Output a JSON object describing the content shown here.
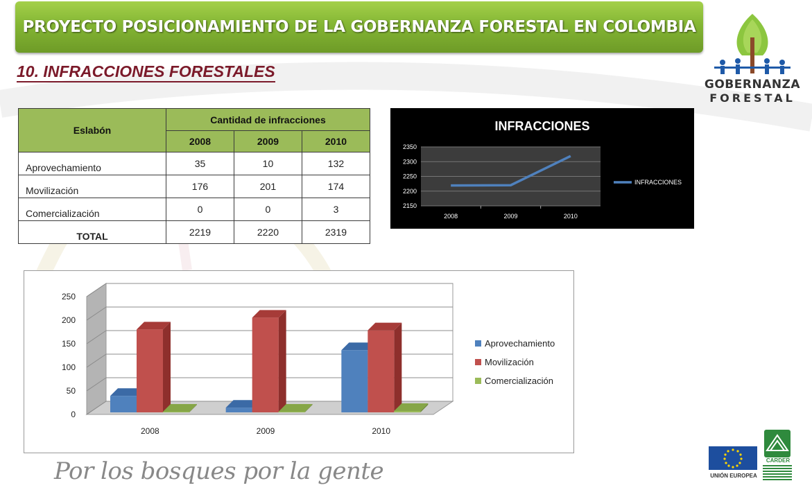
{
  "header": {
    "title": "PROYECTO POSICIONAMIENTO DE LA GOBERNANZA FORESTAL EN COLOMBIA"
  },
  "section": {
    "title": "10. INFRACCIONES FORESTALES"
  },
  "logo": {
    "line1": "GOBERNANZA",
    "line2": "FORESTAL"
  },
  "table": {
    "col_eslabon": "Eslabón",
    "col_cantidad": "Cantidad de infracciones",
    "years": [
      "2008",
      "2009",
      "2010"
    ],
    "rows": [
      {
        "label": "Aprovechamiento",
        "values": [
          "35",
          "10",
          "132"
        ]
      },
      {
        "label": "Movilización",
        "values": [
          "176",
          "201",
          "174"
        ]
      },
      {
        "label": "Comercialización",
        "values": [
          "0",
          "0",
          "3"
        ]
      },
      {
        "label": "TOTAL",
        "values": [
          "2219",
          "2220",
          "2319"
        ]
      }
    ]
  },
  "chart_data": [
    {
      "type": "line",
      "title": "INFRACCIONES",
      "x": [
        "2008",
        "2009",
        "2010"
      ],
      "series": [
        {
          "name": "INFRACCIONES",
          "values": [
            2219,
            2220,
            2319
          ],
          "color": "#4f81bd"
        }
      ],
      "yticks": [
        2150,
        2200,
        2250,
        2300,
        2350
      ],
      "ylim": [
        2150,
        2350
      ],
      "grid": true,
      "legend": "right",
      "background": "#000000"
    },
    {
      "type": "bar",
      "style": "3d-clustered",
      "categories": [
        "2008",
        "2009",
        "2010"
      ],
      "series": [
        {
          "name": "Aprovechamiento",
          "values": [
            35,
            10,
            132
          ],
          "color": "#4f81bd"
        },
        {
          "name": "Movilización",
          "values": [
            176,
            201,
            174
          ],
          "color": "#c0504d"
        },
        {
          "name": "Comercialización",
          "values": [
            0,
            0,
            3
          ],
          "color": "#9bbb59"
        }
      ],
      "yticks": [
        0,
        50,
        100,
        150,
        200,
        250
      ],
      "ylim": [
        0,
        250
      ],
      "grid": true,
      "legend": "right"
    }
  ],
  "footer": {
    "slogan": "Por los bosques por la gente",
    "eu": "UNIÓN EUROPEA",
    "carder": "CARDER"
  }
}
